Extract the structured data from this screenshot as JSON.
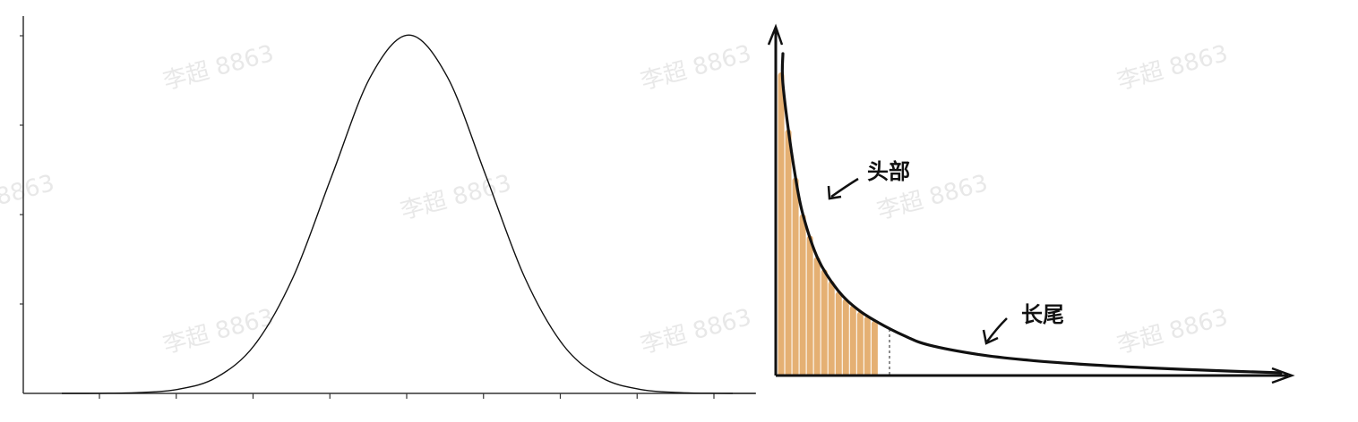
{
  "watermark": "李超 8863",
  "chart_data": [
    {
      "type": "line",
      "title": "",
      "xlabel": "",
      "ylabel": "",
      "series": [
        {
          "x": [
            -4.5,
            -4.0,
            -3.5,
            -3.0,
            -2.5,
            -2.0,
            -1.5,
            -1.0,
            -0.5,
            0.0,
            0.5,
            1.0,
            1.5,
            2.0,
            2.5,
            3.0,
            3.5,
            4.0,
            4.5
          ],
          "y": [
            0.0,
            0.0001,
            0.0009,
            0.0044,
            0.0175,
            0.054,
            0.1295,
            0.242,
            0.3521,
            0.3989,
            0.3521,
            0.242,
            0.1295,
            0.054,
            0.0175,
            0.0044,
            0.0009,
            0.0001,
            0.0
          ]
        }
      ],
      "xlim": [
        -5,
        4.2
      ],
      "ylim": [
        0,
        0.42
      ],
      "x_ticks": 9,
      "y_ticks": 4,
      "grid": false,
      "tick_labels_shown": false
    },
    {
      "type": "area",
      "title": "",
      "xlabel": "",
      "ylabel": "",
      "x": [
        0.0,
        0.1,
        0.2,
        0.35,
        0.5,
        0.8,
        1.2,
        1.6,
        2.0,
        2.5,
        3.0,
        4.0,
        5.0,
        6.0,
        7.0,
        8.0,
        9.0,
        10.0
      ],
      "y": [
        100,
        92,
        78,
        62,
        50,
        36,
        26,
        20,
        16,
        12,
        9,
        6,
        4.2,
        3.0,
        2.1,
        1.4,
        0.8,
        0.3
      ],
      "shaded_region": {
        "x_from": 0.0,
        "x_to": 2.0,
        "fill": "#e0a25a",
        "style": "striped"
      },
      "curve_color": "#111111",
      "annotations": [
        {
          "text": "头部",
          "points_to_x": 0.8
        },
        {
          "text": "长尾",
          "points_to_x": 4.0
        }
      ],
      "axes": "arrows",
      "grid": false
    }
  ]
}
